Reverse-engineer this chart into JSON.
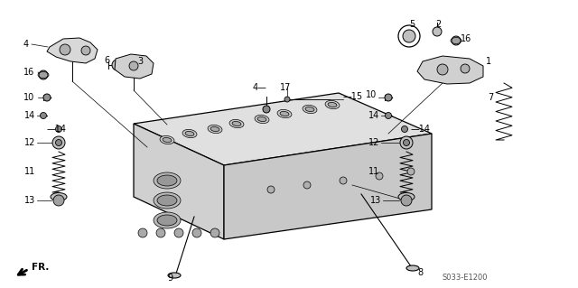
{
  "bg_color": "#ffffff",
  "lc": "#000000",
  "diagram_code": "S033-E1200",
  "figsize": [
    6.4,
    3.19
  ],
  "dpi": 100
}
